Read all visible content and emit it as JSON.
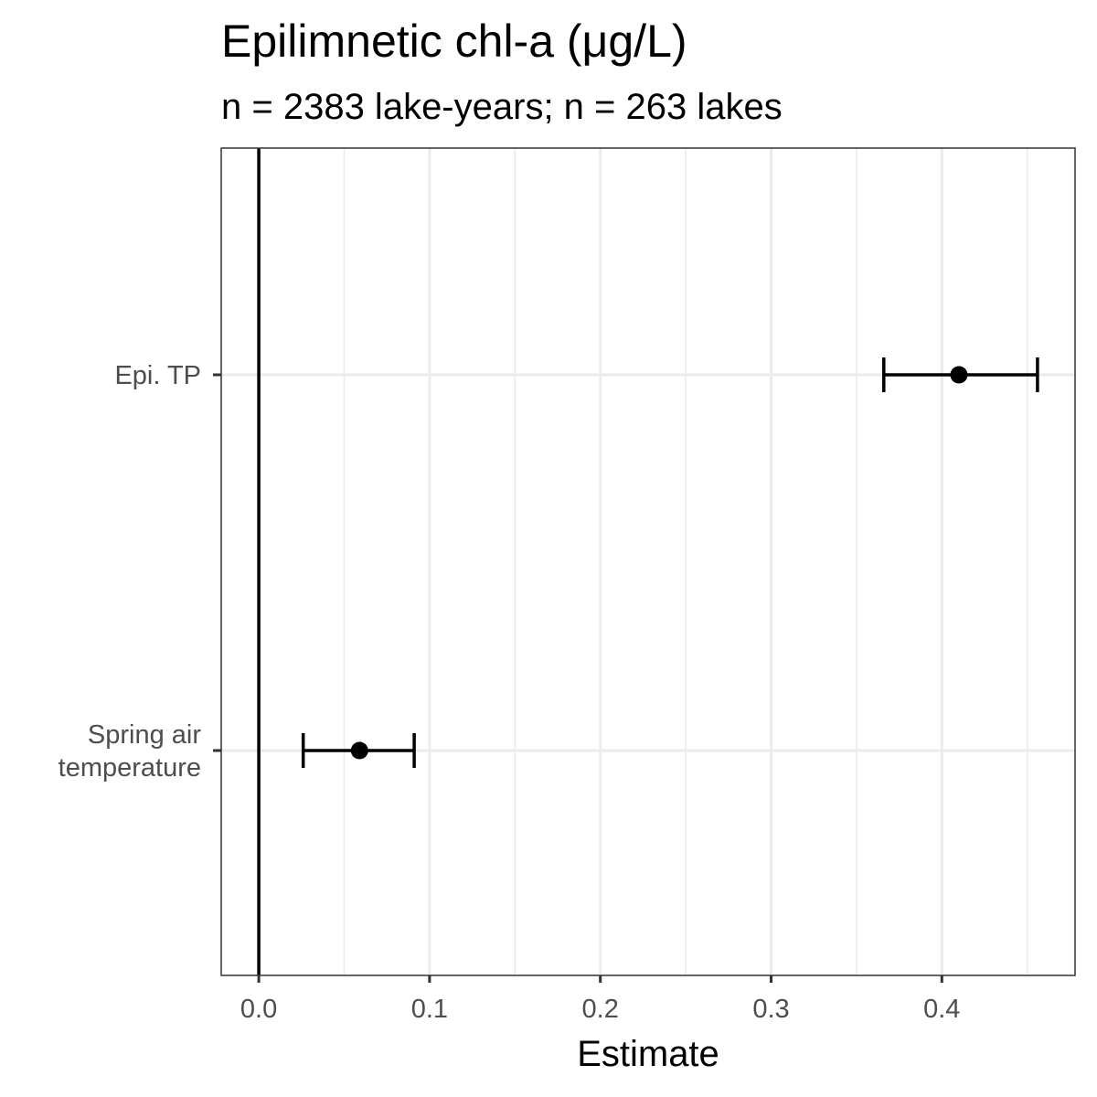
{
  "chart_data": {
    "type": "forest",
    "title": "Epilimnetic chl-a (μg/L)",
    "subtitle": "n = 2383 lake-years; n = 263 lakes",
    "xlabel": "Estimate",
    "ylabel": "",
    "xlim": [
      -0.022,
      0.478
    ],
    "x_ticks": [
      0.0,
      0.1,
      0.2,
      0.3,
      0.4
    ],
    "x_tick_labels": [
      "0.0",
      "0.1",
      "0.2",
      "0.3",
      "0.4"
    ],
    "reference_line": 0,
    "grid": true,
    "terms": [
      {
        "label_lines": [
          "Epi. TP"
        ],
        "estimate": 0.41,
        "lower": 0.366,
        "upper": 0.456
      },
      {
        "label_lines": [
          "Spring air",
          "temperature"
        ],
        "estimate": 0.059,
        "lower": 0.026,
        "upper": 0.091
      }
    ],
    "colors": {
      "points": "#000000",
      "grid": "#ebebeb",
      "panel_border": "#333333",
      "tick_text": "#4d4d4d"
    }
  }
}
